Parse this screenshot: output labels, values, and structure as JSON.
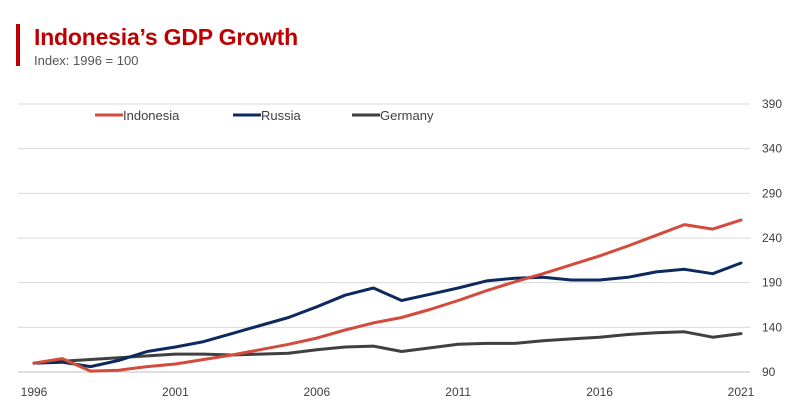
{
  "header": {
    "title": "Indonesia’s GDP Growth",
    "subtitle": "Index: 1996 = 100",
    "accent_color": "#c00000"
  },
  "chart_data": {
    "type": "line",
    "title": "Indonesia’s GDP Growth",
    "subtitle": "Index: 1996 = 100",
    "xlabel": "",
    "ylabel": "",
    "x": [
      1996,
      1997,
      1998,
      1999,
      2000,
      2001,
      2002,
      2003,
      2004,
      2005,
      2006,
      2007,
      2008,
      2009,
      2010,
      2011,
      2012,
      2013,
      2014,
      2015,
      2016,
      2017,
      2018,
      2019,
      2020,
      2021
    ],
    "xticks": [
      "1996",
      "2001",
      "2006",
      "2011",
      "2016",
      "2021"
    ],
    "xlim": [
      1996,
      2021
    ],
    "yticks": [
      "390",
      "340",
      "290",
      "240",
      "190",
      "140",
      "90"
    ],
    "ylim": [
      90,
      390
    ],
    "y_axis_side": "right",
    "grid": true,
    "legend_position": "top-left",
    "series": [
      {
        "name": "Indonesia",
        "color": "#d24b3c",
        "values": [
          100,
          105,
          91,
          92,
          96,
          99,
          104,
          109,
          115,
          121,
          128,
          137,
          145,
          151,
          160,
          170,
          181,
          191,
          200,
          210,
          220,
          231,
          243,
          255,
          250,
          260
        ]
      },
      {
        "name": "Russia",
        "color": "#0d2a5f",
        "values": [
          100,
          101,
          96,
          103,
          113,
          118,
          124,
          133,
          142,
          151,
          163,
          176,
          184,
          170,
          177,
          184,
          192,
          195,
          196,
          193,
          193,
          196,
          202,
          205,
          200,
          212
        ]
      },
      {
        "name": "Germany",
        "color": "#404040",
        "values": [
          100,
          102,
          104,
          106,
          108,
          110,
          110,
          109,
          110,
          111,
          115,
          118,
          119,
          113,
          117,
          121,
          122,
          122,
          125,
          127,
          129,
          132,
          134,
          135,
          129,
          133
        ]
      }
    ]
  }
}
